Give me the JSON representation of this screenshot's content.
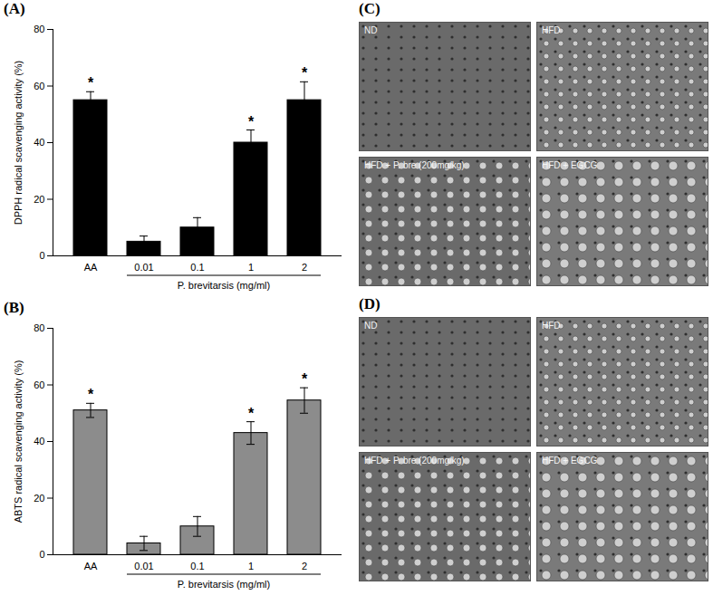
{
  "chart_data": [
    {
      "type": "bar",
      "title": "(A)",
      "categories": [
        "AA",
        "0.01",
        "0.1",
        "1",
        "2"
      ],
      "values": [
        55,
        5,
        10,
        40,
        55
      ],
      "errors": [
        3,
        2,
        3.5,
        4.5,
        6.5
      ],
      "significance": [
        "*",
        null,
        null,
        "*",
        "*"
      ],
      "color": "#000000",
      "xlabel": "P. brevitarsis (mg/ml)",
      "ylabel": "DPPH radical scavenging activity (%)",
      "ylim": [
        0,
        80
      ],
      "yticks": [
        0,
        20,
        40,
        60,
        80
      ],
      "grid": false
    },
    {
      "type": "bar",
      "title": "(B)",
      "categories": [
        "AA",
        "0.01",
        "0.1",
        "1",
        "2"
      ],
      "values": [
        51,
        4,
        10,
        43,
        54.5
      ],
      "errors": [
        2.5,
        2.5,
        3.5,
        4,
        4.5
      ],
      "significance": [
        "*",
        null,
        null,
        "*",
        "*"
      ],
      "color": "#8c8c8c",
      "xlabel": "P. brevitarsis (mg/ml)",
      "ylabel": "ABTS radical scavenging activity (%)",
      "ylim": [
        0,
        80
      ],
      "yticks": [
        0,
        20,
        40,
        60,
        80
      ],
      "grid": false
    }
  ],
  "image_panels": [
    {
      "title": "(C)",
      "panels": [
        "ND",
        "HFD",
        "HFD + P. bre (200mg/kg)",
        "HFD + EGCG"
      ]
    },
    {
      "title": "(D)",
      "panels": [
        "ND",
        "HFD",
        "HFD + P. bre (200mg/kg)",
        "HFD + EGCG"
      ]
    }
  ]
}
